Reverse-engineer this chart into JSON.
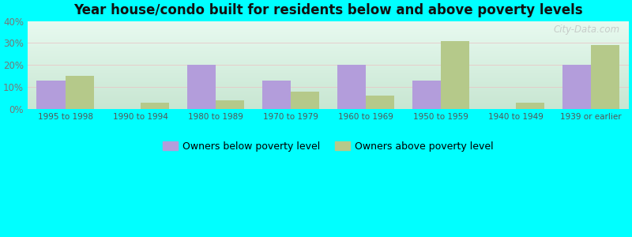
{
  "title": "Year house/condo built for residents below and above poverty levels",
  "categories": [
    "1995 to 1998",
    "1990 to 1994",
    "1980 to 1989",
    "1970 to 1979",
    "1960 to 1969",
    "1950 to 1959",
    "1940 to 1949",
    "1939 or earlier"
  ],
  "below_poverty": [
    13,
    0,
    20,
    13,
    20,
    13,
    0,
    20
  ],
  "above_poverty": [
    15,
    3,
    4,
    8,
    6,
    31,
    3,
    29
  ],
  "below_color": "#b39ddb",
  "above_color": "#b5c98a",
  "outer_background": "#00ffff",
  "plot_bg_top": "#e8faf0",
  "plot_bg_bottom": "#d0eed8",
  "ylim": [
    0,
    40
  ],
  "yticks": [
    0,
    10,
    20,
    30,
    40
  ],
  "ytick_labels": [
    "0%",
    "10%",
    "20%",
    "30%",
    "40%"
  ],
  "legend_below": "Owners below poverty level",
  "legend_above": "Owners above poverty level",
  "bar_width": 0.38,
  "watermark": "City-Data.com"
}
